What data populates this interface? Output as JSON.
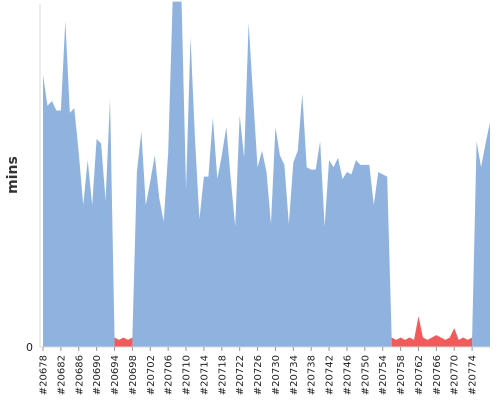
{
  "chart_data": {
    "type": "area",
    "ylabel": "mins",
    "ylim": [
      0,
      145
    ],
    "y_ticks": [
      0
    ],
    "x_tick_labels": [
      "#20678",
      "#20682",
      "#20686",
      "#20690",
      "#20694",
      "#20698",
      "#20702",
      "#20706",
      "#20710",
      "#20714",
      "#20718",
      "#20722",
      "#20726",
      "#20730",
      "#20734",
      "#20738",
      "#20742",
      "#20746",
      "#20750",
      "#20754",
      "#20758",
      "#20762",
      "#20766",
      "#20770",
      "#20774"
    ],
    "build_start": 20678,
    "build_end": 20775,
    "grid": false,
    "legend": "none",
    "colors": {
      "success": "#8fb3de",
      "failure": "#f25b5b"
    },
    "series": [
      {
        "status": "success",
        "points": [
          [
            20678,
            115
          ],
          [
            20679,
            102
          ],
          [
            20680,
            104
          ],
          [
            20681,
            100
          ],
          [
            20682,
            100
          ],
          [
            20683,
            138
          ],
          [
            20684,
            99
          ],
          [
            20685,
            101
          ],
          [
            20686,
            82
          ],
          [
            20687,
            60
          ],
          [
            20688,
            79
          ],
          [
            20689,
            60
          ],
          [
            20690,
            88
          ],
          [
            20691,
            86
          ],
          [
            20692,
            62
          ],
          [
            20693,
            105
          ],
          [
            20694,
            4
          ],
          [
            20698,
            4
          ],
          [
            20699,
            74
          ],
          [
            20700,
            91
          ],
          [
            20701,
            60
          ],
          [
            20702,
            70
          ],
          [
            20703,
            81
          ],
          [
            20704,
            63
          ],
          [
            20705,
            53
          ],
          [
            20706,
            82
          ],
          [
            20707,
            146
          ],
          [
            20708,
            146
          ],
          [
            20709,
            146
          ],
          [
            20710,
            67
          ],
          [
            20711,
            131
          ],
          [
            20712,
            88
          ],
          [
            20713,
            54
          ],
          [
            20714,
            72
          ],
          [
            20715,
            72
          ],
          [
            20716,
            97
          ],
          [
            20717,
            71
          ],
          [
            20718,
            81
          ],
          [
            20719,
            93
          ],
          [
            20720,
            71
          ],
          [
            20721,
            51
          ],
          [
            20722,
            98
          ],
          [
            20723,
            80
          ],
          [
            20724,
            137
          ],
          [
            20725,
            106
          ],
          [
            20726,
            76
          ],
          [
            20727,
            83
          ],
          [
            20728,
            74
          ],
          [
            20729,
            52
          ],
          [
            20730,
            93
          ],
          [
            20731,
            81
          ],
          [
            20732,
            77
          ],
          [
            20733,
            52
          ],
          [
            20734,
            78
          ],
          [
            20735,
            83
          ],
          [
            20736,
            107
          ],
          [
            20737,
            76
          ],
          [
            20738,
            75
          ],
          [
            20739,
            75
          ],
          [
            20740,
            87
          ],
          [
            20741,
            51
          ],
          [
            20742,
            79
          ],
          [
            20743,
            76
          ],
          [
            20744,
            80
          ],
          [
            20745,
            71
          ],
          [
            20746,
            74
          ],
          [
            20747,
            73
          ],
          [
            20748,
            79
          ],
          [
            20749,
            77
          ],
          [
            20750,
            77
          ],
          [
            20751,
            77
          ],
          [
            20752,
            60
          ],
          [
            20753,
            74
          ],
          [
            20754,
            73
          ],
          [
            20755,
            72
          ],
          [
            20756,
            4
          ],
          [
            20774,
            4
          ],
          [
            20775,
            87
          ],
          [
            20776,
            76
          ],
          [
            20777,
            86
          ],
          [
            20778,
            95
          ]
        ]
      },
      {
        "status": "failure",
        "points": [
          [
            20694,
            4
          ],
          [
            20695,
            3
          ],
          [
            20696,
            4
          ],
          [
            20697,
            3
          ],
          [
            20698,
            4
          ],
          [
            20756,
            4
          ],
          [
            20757,
            3
          ],
          [
            20758,
            4
          ],
          [
            20759,
            3
          ],
          [
            20760,
            4
          ],
          [
            20761,
            3
          ],
          [
            20762,
            13
          ],
          [
            20763,
            4
          ],
          [
            20764,
            3
          ],
          [
            20765,
            4
          ],
          [
            20766,
            5
          ],
          [
            20767,
            4
          ],
          [
            20768,
            3
          ],
          [
            20769,
            4
          ],
          [
            20770,
            8
          ],
          [
            20771,
            3
          ],
          [
            20772,
            4
          ],
          [
            20773,
            3
          ],
          [
            20774,
            4
          ]
        ]
      }
    ]
  }
}
